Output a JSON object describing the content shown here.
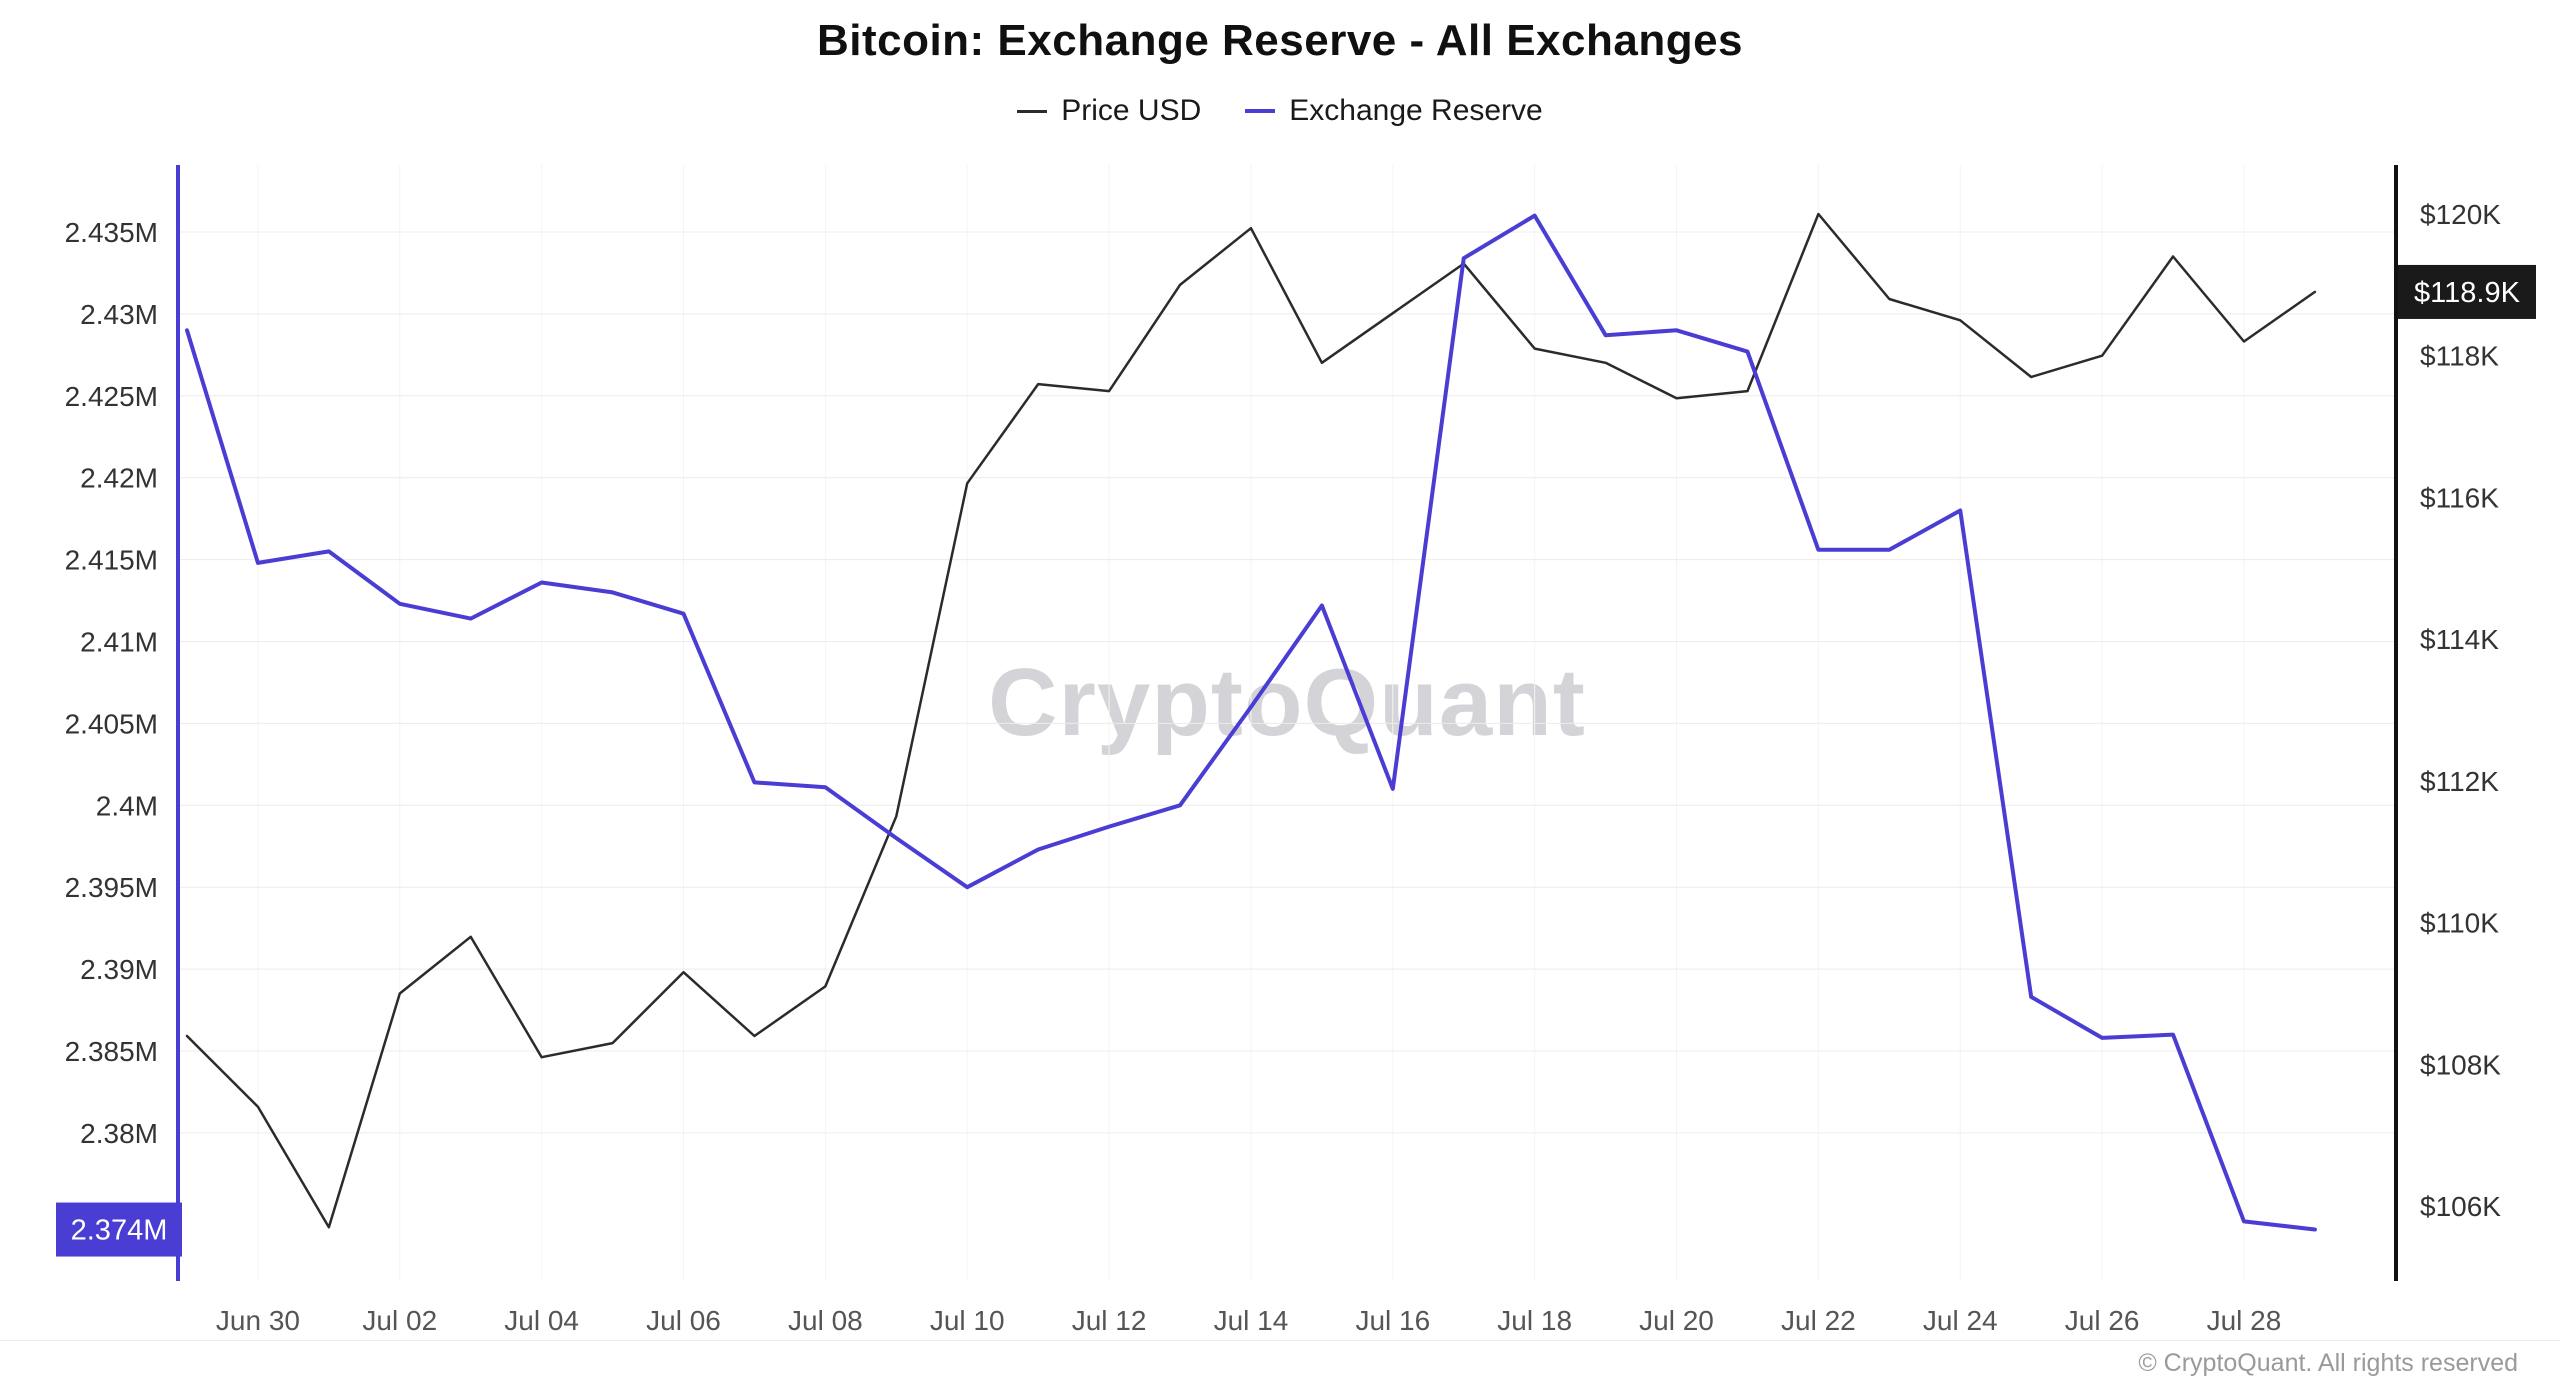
{
  "header": {
    "title": "Bitcoin: Exchange Reserve - All Exchanges",
    "legend": [
      {
        "label": "Price USD",
        "color": "#2b2b2b"
      },
      {
        "label": "Exchange Reserve",
        "color": "#4a3dd3"
      }
    ]
  },
  "watermark": "CryptoQuant",
  "footer": "© CryptoQuant. All rights reserved",
  "chart_data": {
    "type": "line",
    "title": "Bitcoin: Exchange Reserve - All Exchanges",
    "legend_position": "top",
    "grid": true,
    "x": [
      "Jun 29",
      "Jun 30",
      "Jul 01",
      "Jul 02",
      "Jul 03",
      "Jul 04",
      "Jul 05",
      "Jul 06",
      "Jul 07",
      "Jul 08",
      "Jul 09",
      "Jul 10",
      "Jul 11",
      "Jul 12",
      "Jul 13",
      "Jul 14",
      "Jul 15",
      "Jul 16",
      "Jul 17",
      "Jul 18",
      "Jul 19",
      "Jul 20",
      "Jul 21",
      "Jul 22",
      "Jul 23",
      "Jul 24",
      "Jul 25",
      "Jul 26",
      "Jul 27",
      "Jul 28",
      "Jul 29"
    ],
    "x_tick_labels": [
      "Jun 30",
      "Jul 02",
      "Jul 04",
      "Jul 06",
      "Jul 08",
      "Jul 10",
      "Jul 12",
      "Jul 14",
      "Jul 16",
      "Jul 18",
      "Jul 20",
      "Jul 22",
      "Jul 24",
      "Jul 26",
      "Jul 28"
    ],
    "series": [
      {
        "name": "Price USD",
        "axis": "right",
        "color": "#2b2b2b",
        "unit": "USD (thousands)",
        "values": [
          108.4,
          107.4,
          105.7,
          109.0,
          109.8,
          108.1,
          108.3,
          109.3,
          108.4,
          109.1,
          111.5,
          116.2,
          117.6,
          117.5,
          119.0,
          119.8,
          117.9,
          118.6,
          119.3,
          118.1,
          117.9,
          117.4,
          117.5,
          120.0,
          118.8,
          118.5,
          117.7,
          118.0,
          119.4,
          118.2,
          118.9
        ]
      },
      {
        "name": "Exchange Reserve",
        "axis": "left",
        "color": "#4a3dd3",
        "unit": "BTC (millions)",
        "values": [
          2.429,
          2.4148,
          2.4155,
          2.4123,
          2.4114,
          2.4136,
          2.413,
          2.4117,
          2.4014,
          2.4011,
          2.398,
          2.395,
          2.3973,
          2.3987,
          2.4,
          2.406,
          2.4122,
          2.401,
          2.4334,
          2.436,
          2.4287,
          2.429,
          2.4277,
          2.4156,
          2.4156,
          2.418,
          2.3883,
          2.3858,
          2.386,
          2.3746,
          2.3741
        ]
      }
    ],
    "left_axis": {
      "label": "Exchange Reserve",
      "tick_labels": [
        "2.435M",
        "2.43M",
        "2.425M",
        "2.42M",
        "2.415M",
        "2.41M",
        "2.405M",
        "2.4M",
        "2.395M",
        "2.39M",
        "2.385M",
        "2.38M"
      ],
      "tick_values": [
        2.435,
        2.43,
        2.425,
        2.42,
        2.415,
        2.41,
        2.405,
        2.4,
        2.395,
        2.39,
        2.385,
        2.38
      ],
      "current_badge": "2.374M"
    },
    "right_axis": {
      "label": "Price USD",
      "tick_labels": [
        "$120K",
        "$118K",
        "$116K",
        "$114K",
        "$112K",
        "$110K",
        "$108K",
        "$106K"
      ],
      "tick_values": [
        120,
        118,
        116,
        114,
        112,
        110,
        108,
        106
      ],
      "current_badge": "$118.9K"
    }
  }
}
